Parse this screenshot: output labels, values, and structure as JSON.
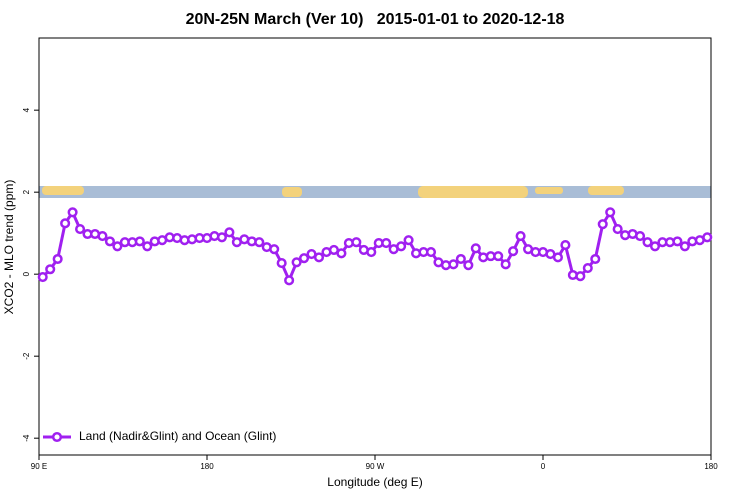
{
  "chart_data": {
    "type": "line",
    "title": "20N-25N March (Ver 10)   2015-01-01 to 2020-12-18",
    "xlabel": "Longitude (deg E)",
    "ylabel": "XCO2 - MLO trend (ppm)",
    "x": [
      92,
      96,
      100,
      104,
      108,
      112,
      116,
      120,
      124,
      128,
      132,
      136,
      140,
      144,
      148,
      152,
      156,
      160,
      164,
      168,
      172,
      176,
      180,
      184,
      188,
      192,
      196,
      200,
      204,
      208,
      212,
      216,
      220,
      224,
      228,
      232,
      236,
      240,
      244,
      248,
      252,
      256,
      260,
      264,
      268,
      272,
      276,
      280,
      284,
      288,
      292,
      296,
      300,
      304,
      308,
      312,
      316,
      320,
      324,
      328,
      332,
      336,
      340,
      344,
      348,
      352,
      356,
      360,
      364,
      368,
      372,
      376,
      380,
      384,
      388,
      392,
      396,
      400,
      404,
      408,
      412,
      416,
      420,
      424,
      428,
      432,
      436,
      440,
      444,
      448
    ],
    "series": [
      {
        "name": "Land (Nadir&Glint) and Ocean (Glint)",
        "color": "#a020f0",
        "values": [
          -0.07,
          0.12,
          0.37,
          1.24,
          1.51,
          1.1,
          0.98,
          0.98,
          0.93,
          0.8,
          0.68,
          0.78,
          0.78,
          0.8,
          0.68,
          0.8,
          0.83,
          0.9,
          0.88,
          0.83,
          0.85,
          0.88,
          0.88,
          0.93,
          0.9,
          1.02,
          0.78,
          0.85,
          0.8,
          0.78,
          0.66,
          0.61,
          0.27,
          -0.15,
          0.29,
          0.39,
          0.49,
          0.41,
          0.54,
          0.59,
          0.51,
          0.76,
          0.78,
          0.59,
          0.54,
          0.76,
          0.76,
          0.61,
          0.68,
          0.83,
          0.51,
          0.54,
          0.54,
          0.29,
          0.22,
          0.24,
          0.37,
          0.22,
          0.63,
          0.41,
          0.44,
          0.44,
          0.24,
          0.56,
          0.93,
          0.61,
          0.54,
          0.54,
          0.49,
          0.41,
          0.71,
          -0.02,
          -0.05,
          0.15,
          0.37,
          1.22,
          1.51,
          1.1,
          0.95,
          0.98,
          0.93,
          0.78,
          0.68,
          0.78,
          0.78,
          0.8,
          0.68,
          0.8,
          0.83,
          0.9
        ]
      }
    ],
    "xlim": [
      90,
      450
    ],
    "ylim": [
      -4.41,
      5.76
    ],
    "xticks": [
      {
        "value": 90,
        "label": "90 E"
      },
      180,
      {
        "value": 270,
        "label": "90 W"
      },
      {
        "value": 360,
        "label": "0"
      },
      {
        "value": 450,
        "label": "180"
      }
    ],
    "yticks": [
      -4,
      -2,
      0,
      2,
      4
    ],
    "legend": "bottom-left"
  }
}
